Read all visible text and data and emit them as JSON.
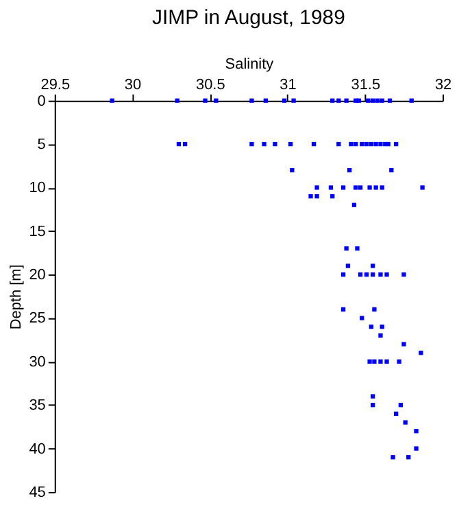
{
  "chart_data": {
    "type": "scatter",
    "title": "JIMP in August, 1989",
    "xlabel": "Salinity",
    "ylabel": "Depth [m]",
    "x": [
      29.87,
      30.29,
      30.47,
      30.54,
      30.77,
      30.86,
      30.98,
      31.04,
      31.29,
      31.33,
      31.38,
      31.44,
      31.46,
      31.52,
      31.55,
      31.58,
      31.61,
      31.66,
      31.8,
      30.3,
      30.34,
      30.77,
      30.85,
      30.92,
      31.02,
      31.17,
      31.33,
      31.41,
      31.44,
      31.48,
      31.51,
      31.54,
      31.57,
      31.6,
      31.63,
      31.65,
      31.7,
      31.03,
      31.4,
      31.67,
      31.19,
      31.28,
      31.36,
      31.44,
      31.47,
      31.53,
      31.57,
      31.61,
      31.87,
      31.15,
      31.19,
      31.29,
      31.43,
      31.38,
      31.45,
      31.39,
      31.55,
      31.36,
      31.47,
      31.51,
      31.55,
      31.6,
      31.64,
      31.75,
      31.36,
      31.56,
      31.48,
      31.54,
      31.61,
      31.6,
      31.75,
      31.86,
      31.53,
      31.56,
      31.6,
      31.64,
      31.72,
      31.55,
      31.55,
      31.73,
      31.7,
      31.76,
      31.83,
      31.83,
      31.68,
      31.78
    ],
    "values": [
      0,
      0,
      0,
      0,
      0,
      0,
      0,
      0,
      0,
      0,
      0,
      0,
      0,
      0,
      0,
      0,
      0,
      0,
      0,
      5,
      5,
      5,
      5,
      5,
      5,
      5,
      5,
      5,
      5,
      5,
      5,
      5,
      5,
      5,
      5,
      5,
      5,
      8,
      8,
      8,
      10,
      10,
      10,
      10,
      10,
      10,
      10,
      10,
      10,
      11,
      11,
      11,
      12,
      17,
      17,
      19,
      19,
      20,
      20,
      20,
      20,
      20,
      20,
      20,
      24,
      24,
      25,
      26,
      26,
      27,
      28,
      29,
      30,
      30,
      30,
      30,
      30,
      34,
      35,
      35,
      36,
      37,
      38,
      40,
      41,
      41
    ],
    "color": "#0000ff",
    "marker": "square",
    "xlim": [
      29.5,
      32
    ],
    "xticks": [
      29.5,
      30,
      30.5,
      31,
      31.5,
      32
    ],
    "ylim": [
      45,
      0
    ],
    "yticks": [
      0,
      5,
      10,
      15,
      20,
      25,
      30,
      35,
      40,
      45
    ],
    "grid": false
  }
}
